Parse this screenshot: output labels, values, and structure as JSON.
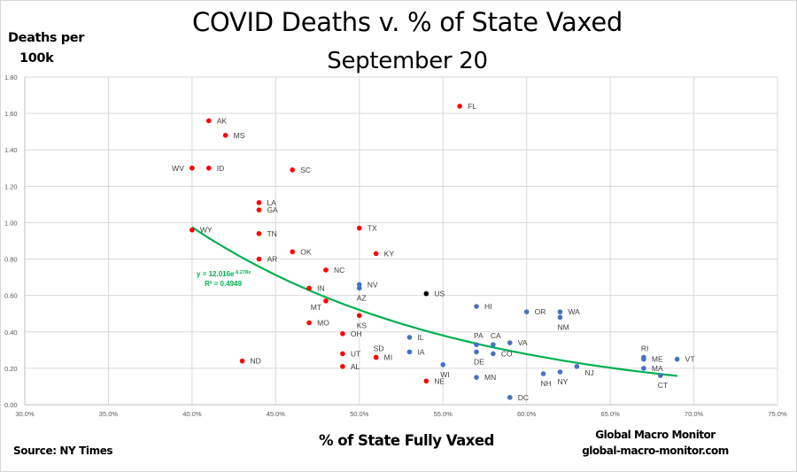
{
  "chart_data": {
    "type": "scatter",
    "title": "COVID Deaths  v. % of State Vaxed",
    "subtitle": "September 20",
    "xlabel": "% of State Fully Vaxed",
    "ylabel_line1": "Deaths per",
    "ylabel_line2": "100k",
    "xlim": [
      0.3,
      0.75
    ],
    "ylim": [
      0.0,
      1.8
    ],
    "x_ticks": [
      0.3,
      0.35,
      0.4,
      0.45,
      0.5,
      0.55,
      0.6,
      0.65,
      0.7,
      0.75
    ],
    "x_tick_labels": [
      "30.0%",
      "35.0%",
      "40.0%",
      "45.0%",
      "50.0%",
      "55.0%",
      "60.0%",
      "65.0%",
      "70.0%",
      "75.0%"
    ],
    "y_ticks": [
      0.0,
      0.2,
      0.4,
      0.6,
      0.8,
      1.0,
      1.2,
      1.4,
      1.6,
      1.8
    ],
    "y_tick_labels": [
      "0.00",
      "0.20",
      "0.40",
      "0.60",
      "0.80",
      "1.00",
      "1.20",
      "1.40",
      "1.60",
      "1.80"
    ],
    "grid": true,
    "colors": {
      "red": "#ff0000",
      "blue": "#4472c4",
      "black": "#000000",
      "trend": "#00b050",
      "grid": "#d9d9d9"
    },
    "series": [
      {
        "name": "Red states",
        "color": "red",
        "points": [
          {
            "label": "FL",
            "x": 0.56,
            "y": 1.64
          },
          {
            "label": "AK",
            "x": 0.41,
            "y": 1.56
          },
          {
            "label": "MS",
            "x": 0.42,
            "y": 1.48
          },
          {
            "label": "WV",
            "x": 0.4,
            "y": 1.3,
            "label_pos": "left"
          },
          {
            "label": "ID",
            "x": 0.41,
            "y": 1.3
          },
          {
            "label": "SC",
            "x": 0.46,
            "y": 1.29
          },
          {
            "label": "LA",
            "x": 0.44,
            "y": 1.11
          },
          {
            "label": "GA",
            "x": 0.44,
            "y": 1.07
          },
          {
            "label": "TX",
            "x": 0.5,
            "y": 0.97
          },
          {
            "label": "WY",
            "x": 0.4,
            "y": 0.96
          },
          {
            "label": "TN",
            "x": 0.44,
            "y": 0.94
          },
          {
            "label": "OK",
            "x": 0.46,
            "y": 0.84
          },
          {
            "label": "KY",
            "x": 0.51,
            "y": 0.83
          },
          {
            "label": "AR",
            "x": 0.44,
            "y": 0.8
          },
          {
            "label": "NC",
            "x": 0.48,
            "y": 0.74
          },
          {
            "label": "IN",
            "x": 0.47,
            "y": 0.64
          },
          {
            "label": "MT",
            "x": 0.48,
            "y": 0.57,
            "label_pos": "below-left"
          },
          {
            "label": "KS",
            "x": 0.5,
            "y": 0.49,
            "label_pos": "below"
          },
          {
            "label": "MO",
            "x": 0.47,
            "y": 0.45
          },
          {
            "label": "OH",
            "x": 0.49,
            "y": 0.39
          },
          {
            "label": "UT",
            "x": 0.49,
            "y": 0.28
          },
          {
            "label": "SD",
            "x": 0.51,
            "y": 0.26,
            "label_pos": "above"
          },
          {
            "label": "MI",
            "x": 0.51,
            "y": 0.26
          },
          {
            "label": "ND",
            "x": 0.43,
            "y": 0.24
          },
          {
            "label": "AL",
            "x": 0.49,
            "y": 0.21
          },
          {
            "label": "NE",
            "x": 0.54,
            "y": 0.13
          }
        ]
      },
      {
        "name": "Blue states",
        "color": "blue",
        "points": [
          {
            "label": "NV",
            "x": 0.5,
            "y": 0.66
          },
          {
            "label": "AZ",
            "x": 0.5,
            "y": 0.64,
            "label_pos": "below"
          },
          {
            "label": "HI",
            "x": 0.57,
            "y": 0.54
          },
          {
            "label": "OR",
            "x": 0.6,
            "y": 0.51
          },
          {
            "label": "WA",
            "x": 0.62,
            "y": 0.51
          },
          {
            "label": "NM",
            "x": 0.62,
            "y": 0.48,
            "label_pos": "below"
          },
          {
            "label": "IL",
            "x": 0.53,
            "y": 0.37
          },
          {
            "label": "VA",
            "x": 0.59,
            "y": 0.34
          },
          {
            "label": "PA",
            "x": 0.57,
            "y": 0.33,
            "label_pos": "above"
          },
          {
            "label": "CA",
            "x": 0.58,
            "y": 0.33,
            "label_pos": "above"
          },
          {
            "label": "IA",
            "x": 0.53,
            "y": 0.29
          },
          {
            "label": "DE",
            "x": 0.57,
            "y": 0.29,
            "label_pos": "below"
          },
          {
            "label": "CO",
            "x": 0.58,
            "y": 0.28
          },
          {
            "label": "RI",
            "x": 0.67,
            "y": 0.26,
            "label_pos": "above"
          },
          {
            "label": "ME",
            "x": 0.67,
            "y": 0.25
          },
          {
            "label": "VT",
            "x": 0.69,
            "y": 0.25
          },
          {
            "label": "WI",
            "x": 0.55,
            "y": 0.22,
            "label_pos": "below"
          },
          {
            "label": "NJ",
            "x": 0.63,
            "y": 0.21,
            "label_pos": "below-right"
          },
          {
            "label": "MA",
            "x": 0.67,
            "y": 0.2
          },
          {
            "label": "NY",
            "x": 0.62,
            "y": 0.18,
            "label_pos": "below"
          },
          {
            "label": "NH",
            "x": 0.61,
            "y": 0.17,
            "label_pos": "below"
          },
          {
            "label": "CT",
            "x": 0.68,
            "y": 0.16,
            "label_pos": "below"
          },
          {
            "label": "MN",
            "x": 0.57,
            "y": 0.15
          },
          {
            "label": "DC",
            "x": 0.59,
            "y": 0.04
          }
        ]
      },
      {
        "name": "US",
        "color": "black",
        "points": [
          {
            "label": "US",
            "x": 0.54,
            "y": 0.61
          }
        ]
      }
    ],
    "trendline": {
      "type": "exponential",
      "a": 12.016,
      "b": -6.278,
      "x_range": [
        0.4,
        0.69
      ],
      "equation_label": "y = 12.016e",
      "equation_exponent": "-6.278x",
      "r2_label": "R² = 0.4949"
    }
  },
  "footer": {
    "source": "Source:  NY Times",
    "brand_name": "Global Macro Monitor",
    "brand_url": "global-macro-monitor.com"
  }
}
